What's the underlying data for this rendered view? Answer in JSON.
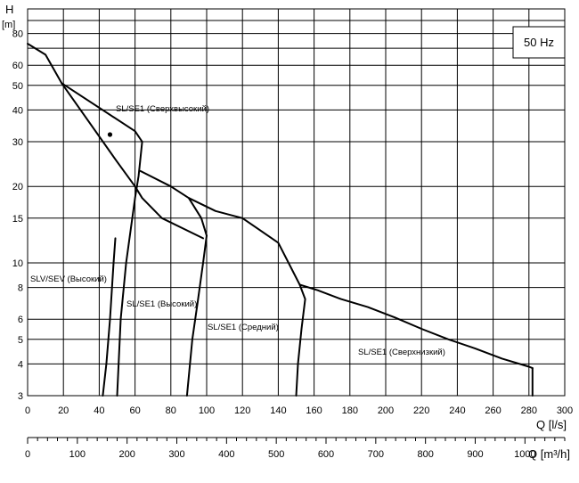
{
  "chart_data": {
    "type": "line",
    "y_axis": {
      "label": "H",
      "unit": "[m]",
      "scale": "log",
      "ylim": [
        3,
        100
      ],
      "ticks": [
        3,
        4,
        5,
        6,
        8,
        10,
        15,
        20,
        30,
        40,
        50,
        60,
        80
      ],
      "gridlines": [
        3,
        4,
        5,
        6,
        8,
        10,
        15,
        20,
        30,
        40,
        50,
        60,
        70,
        80,
        90,
        100
      ]
    },
    "x_axis": {
      "label": "Q [l/s]",
      "xlim": [
        0,
        300
      ],
      "ticks": [
        0,
        20,
        40,
        60,
        80,
        100,
        120,
        140,
        160,
        180,
        200,
        220,
        240,
        260,
        280,
        300
      ]
    },
    "x_axis_secondary": {
      "label": "Q [m³/h]",
      "xlim": [
        0,
        1080
      ],
      "ticks": [
        0,
        100,
        200,
        300,
        400,
        500,
        600,
        700,
        800,
        900,
        1000
      ]
    },
    "grid": true,
    "legend_text": "50 Hz",
    "curves": [
      {
        "points": [
          [
            0,
            73
          ],
          [
            10,
            66
          ],
          [
            19,
            51
          ],
          [
            60,
            33
          ],
          [
            64,
            30
          ]
        ]
      },
      {
        "points": [
          [
            19,
            51
          ],
          [
            50,
            25
          ],
          [
            60,
            20
          ],
          [
            64,
            18
          ],
          [
            75,
            15
          ],
          [
            98,
            12.5
          ]
        ]
      },
      {
        "points": [
          [
            64,
            30
          ],
          [
            62,
            22
          ],
          [
            60,
            18
          ],
          [
            55,
            10
          ],
          [
            52,
            6
          ],
          [
            50,
            3
          ]
        ]
      },
      {
        "points": [
          [
            49,
            12.5
          ],
          [
            48,
            10
          ],
          [
            46,
            6
          ],
          [
            44,
            4
          ],
          [
            42,
            3
          ]
        ]
      },
      {
        "points": [
          [
            63,
            23
          ],
          [
            80,
            20
          ],
          [
            90,
            18
          ],
          [
            105,
            16
          ],
          [
            120,
            15
          ],
          [
            140,
            12
          ],
          [
            152,
            8.2
          ],
          [
            162,
            7.8
          ],
          [
            175,
            7.2
          ],
          [
            190,
            6.7
          ],
          [
            205,
            6.1
          ],
          [
            220,
            5.5
          ],
          [
            235,
            5.0
          ],
          [
            250,
            4.6
          ],
          [
            265,
            4.2
          ],
          [
            280,
            3.9
          ],
          [
            282,
            3.85
          ]
        ]
      },
      {
        "points": [
          [
            90,
            18
          ],
          [
            97,
            15
          ],
          [
            100,
            12.8
          ]
        ]
      },
      {
        "points": [
          [
            100,
            12.8
          ],
          [
            98,
            10
          ],
          [
            95,
            7
          ],
          [
            92,
            5
          ],
          [
            89,
            3
          ]
        ]
      },
      {
        "points": [
          [
            152,
            8.2
          ],
          [
            155,
            7.2
          ],
          [
            153,
            5.5
          ],
          [
            151,
            4
          ],
          [
            150,
            3
          ]
        ]
      },
      {
        "points": [
          [
            282,
            3.85
          ],
          [
            282,
            3.0
          ]
        ]
      }
    ],
    "annotations": [
      {
        "text": "SL/SE1 (Сверхвысокий)"
      },
      {
        "text": "SLV/SEV (Высокий)"
      },
      {
        "text": "SL/SE1 (Высокий)"
      },
      {
        "text": "SL/SE1 (Средний)"
      },
      {
        "text": "SL/SE1 (Сверхнизкий)"
      }
    ],
    "marker_point": [
      46,
      32
    ]
  }
}
